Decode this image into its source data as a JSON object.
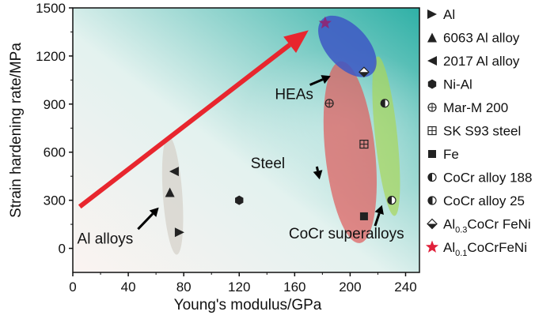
{
  "colors": {
    "marker": "#222222",
    "star": "#e0203a",
    "arrow_red": "#e8262e",
    "heas_fill": "#3d57c4",
    "steel_fill": "#e05a5a",
    "cocr_fill": "#a8d65a",
    "al_fill": "#d4d0c8",
    "bg_light": "#fbf4f2",
    "bg_teal": "#34b0a8"
  },
  "chart_data": {
    "type": "scatter",
    "xlabel": "Young's modulus/GPa",
    "ylabel": "Strain hardening rate/MPa",
    "xlim": [
      0,
      250
    ],
    "ylim": [
      -150,
      1500
    ],
    "xticks": [
      0,
      40,
      80,
      120,
      160,
      200,
      240
    ],
    "yticks": [
      0,
      300,
      600,
      900,
      1200,
      1500
    ],
    "series": [
      {
        "name": "Al",
        "marker": "triangle-right",
        "points": [
          [
            77,
            100
          ]
        ]
      },
      {
        "name": "6063 Al alloy",
        "marker": "triangle-up",
        "points": [
          [
            70,
            350
          ]
        ]
      },
      {
        "name": "2017 Al alloy",
        "marker": "triangle-left",
        "points": [
          [
            73,
            480
          ]
        ]
      },
      {
        "name": "Ni-Al",
        "marker": "hexagon",
        "points": [
          [
            120,
            300
          ]
        ]
      },
      {
        "name": "Mar-M 200",
        "marker": "circle-cross",
        "points": [
          [
            185,
            905
          ]
        ]
      },
      {
        "name": "SK S93 steel",
        "marker": "square-cross",
        "points": [
          [
            210,
            650
          ]
        ]
      },
      {
        "name": "Fe",
        "marker": "square",
        "points": [
          [
            210,
            200
          ]
        ]
      },
      {
        "name": "CoCr alloy 188",
        "marker": "circle-half-left",
        "points": [
          [
            230,
            300
          ]
        ]
      },
      {
        "name": "CoCr alloy 25",
        "marker": "circle-half-left-light",
        "points": [
          [
            225,
            905
          ]
        ]
      },
      {
        "name": "Al0.3CoCr FeNi",
        "marker": "diamond-half",
        "points": [
          [
            210,
            1100
          ]
        ]
      },
      {
        "name": "Al0.1CoCrFeNi",
        "marker": "star",
        "points": [
          [
            182,
            1405
          ]
        ]
      }
    ],
    "legend": [
      {
        "marker": "triangle-right",
        "text": "Al"
      },
      {
        "marker": "triangle-up",
        "text": "6063 Al alloy"
      },
      {
        "marker": "triangle-left",
        "text": "2017 Al alloy"
      },
      {
        "marker": "hexagon",
        "text": "Ni-Al"
      },
      {
        "marker": "circle-cross",
        "text": "Mar-M 200"
      },
      {
        "marker": "square-cross",
        "text": "SK S93 steel"
      },
      {
        "marker": "square",
        "text": "Fe"
      },
      {
        "marker": "circle-half-left",
        "text": "CoCr alloy 188"
      },
      {
        "marker": "circle-half-left-light",
        "text": "CoCr alloy 25"
      },
      {
        "marker": "diamond-half",
        "text": "Al",
        "sub": "0.3",
        "rest": "CoCr FeNi"
      },
      {
        "marker": "star",
        "text": "Al",
        "sub": "0.1",
        "rest": "CoCrFeNi"
      }
    ],
    "regions": [
      {
        "name": "Al alloys",
        "label": "Al alloys",
        "cx": 72,
        "cy": 330,
        "rx": 7,
        "ry": 370,
        "fill": "al_fill"
      },
      {
        "name": "Steel",
        "label": "Steel",
        "cx": 200,
        "cy": 600,
        "rx": 18,
        "ry": 570,
        "fill": "steel_fill"
      },
      {
        "name": "CoCr superalloys",
        "label": "CoCr superalloys",
        "cx": 226,
        "cy": 700,
        "rx": 8,
        "ry": 500,
        "fill": "cocr_fill"
      },
      {
        "name": "HEAs",
        "label": "HEAs",
        "cx": 198,
        "cy": 1260,
        "rx": 15,
        "ry": 230,
        "fill": "heas_fill"
      }
    ],
    "trend_arrow": {
      "from": [
        5,
        260
      ],
      "to": [
        170,
        1360
      ]
    }
  }
}
